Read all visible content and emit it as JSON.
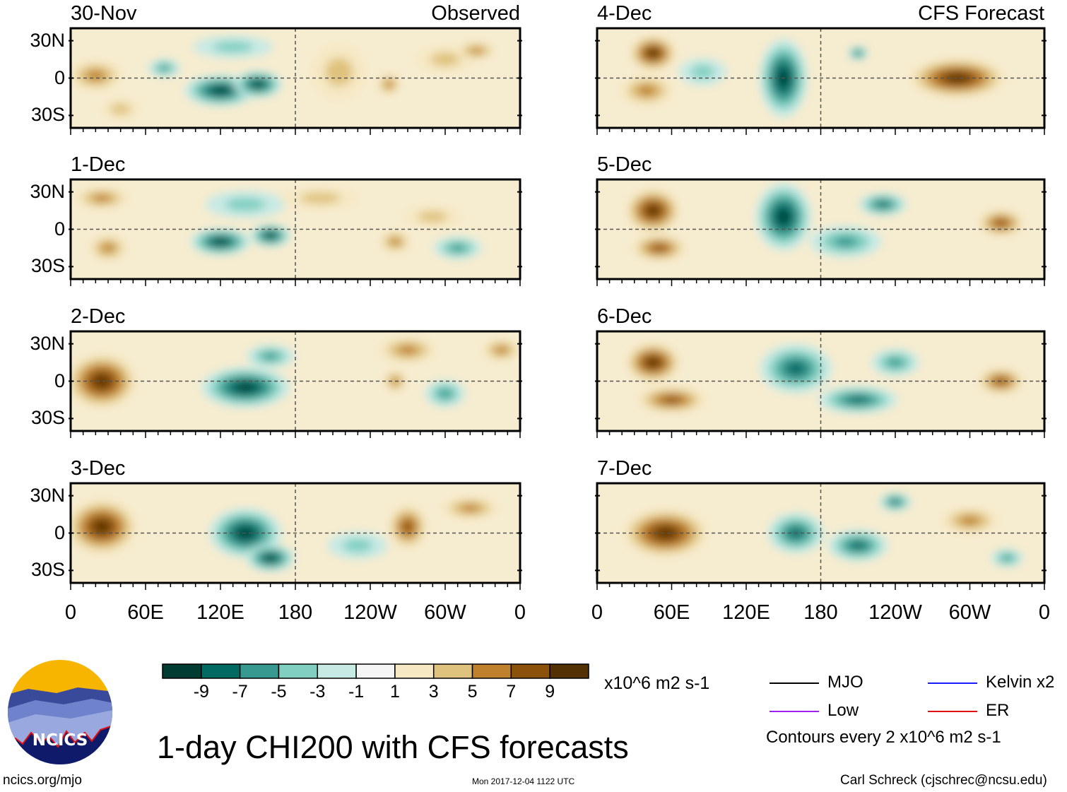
{
  "chart_data": {
    "type": "heatmap",
    "title": "1-day CHI200 with CFS forecasts",
    "units": "x10^6 m2 s-1",
    "x_ticks": [
      "0",
      "60E",
      "120E",
      "180",
      "120W",
      "60W",
      "0"
    ],
    "y_ticks": [
      "30N",
      "0",
      "30S"
    ],
    "lon_range": [
      0,
      360
    ],
    "lat_range": [
      -40,
      40
    ],
    "colorbar": {
      "labels": [
        "-9",
        "-7",
        "-5",
        "-3",
        "-1",
        "1",
        "3",
        "5",
        "7",
        "9"
      ],
      "colors": [
        "#013c33",
        "#016a63",
        "#379990",
        "#80cfc1",
        "#c7eae5",
        "#f5f5f5",
        "#f6e8c3",
        "#dfc27d",
        "#bf812d",
        "#8c510a",
        "#543005"
      ]
    },
    "legend": [
      {
        "label": "MJO",
        "color": "#000000"
      },
      {
        "label": "Kelvin x2",
        "color": "#1a1aff"
      },
      {
        "label": "Low",
        "color": "#a020f0"
      },
      {
        "label": "ER",
        "color": "#e01010"
      }
    ],
    "contour_note": "Contours every 2 x10^6 m2 s-1",
    "panels": [
      {
        "date": "30-Nov",
        "tag": "Observed",
        "column": "left",
        "features": [
          {
            "lon": 20,
            "lat": 2,
            "value": 6,
            "sx": 14,
            "sy": 14
          },
          {
            "lon": 40,
            "lat": -25,
            "value": 4,
            "sx": 10,
            "sy": 10
          },
          {
            "lon": 75,
            "lat": 8,
            "value": -6,
            "sx": 8,
            "sy": 8
          },
          {
            "lon": 120,
            "lat": -10,
            "value": -10,
            "sx": 18,
            "sy": 14
          },
          {
            "lon": 150,
            "lat": -5,
            "value": -9,
            "sx": 12,
            "sy": 12
          },
          {
            "lon": 130,
            "lat": 25,
            "value": -4,
            "sx": 20,
            "sy": 10
          },
          {
            "lon": 215,
            "lat": 5,
            "value": 4,
            "sx": 14,
            "sy": 25
          },
          {
            "lon": 255,
            "lat": -5,
            "value": 6,
            "sx": 6,
            "sy": 10
          },
          {
            "lon": 300,
            "lat": 15,
            "value": 4,
            "sx": 15,
            "sy": 12
          },
          {
            "lon": 325,
            "lat": 22,
            "value": 5,
            "sx": 10,
            "sy": 8
          }
        ]
      },
      {
        "date": "1-Dec",
        "tag": "",
        "column": "left",
        "features": [
          {
            "lon": 25,
            "lat": 25,
            "value": 5,
            "sx": 14,
            "sy": 10
          },
          {
            "lon": 30,
            "lat": -15,
            "value": 5,
            "sx": 10,
            "sy": 12
          },
          {
            "lon": 120,
            "lat": -10,
            "value": -10,
            "sx": 15,
            "sy": 12
          },
          {
            "lon": 160,
            "lat": -5,
            "value": -9,
            "sx": 10,
            "sy": 10
          },
          {
            "lon": 140,
            "lat": 20,
            "value": -4,
            "sx": 20,
            "sy": 12
          },
          {
            "lon": 200,
            "lat": 25,
            "value": 4,
            "sx": 20,
            "sy": 10
          },
          {
            "lon": 260,
            "lat": -10,
            "value": 5,
            "sx": 8,
            "sy": 10
          },
          {
            "lon": 310,
            "lat": -15,
            "value": -6,
            "sx": 12,
            "sy": 10
          },
          {
            "lon": 290,
            "lat": 10,
            "value": 4,
            "sx": 15,
            "sy": 10
          }
        ]
      },
      {
        "date": "2-Dec",
        "tag": "",
        "column": "left",
        "features": [
          {
            "lon": 25,
            "lat": 0,
            "value": 11,
            "sx": 18,
            "sy": 25
          },
          {
            "lon": 140,
            "lat": -5,
            "value": -10,
            "sx": 22,
            "sy": 18
          },
          {
            "lon": 160,
            "lat": 20,
            "value": -6,
            "sx": 12,
            "sy": 10
          },
          {
            "lon": 270,
            "lat": 25,
            "value": 6,
            "sx": 15,
            "sy": 12
          },
          {
            "lon": 260,
            "lat": 0,
            "value": 5,
            "sx": 6,
            "sy": 10
          },
          {
            "lon": 300,
            "lat": -10,
            "value": -5,
            "sx": 10,
            "sy": 12
          },
          {
            "lon": 345,
            "lat": 25,
            "value": 5,
            "sx": 10,
            "sy": 10
          }
        ]
      },
      {
        "date": "3-Dec",
        "tag": "",
        "column": "left",
        "features": [
          {
            "lon": 25,
            "lat": 5,
            "value": 11,
            "sx": 18,
            "sy": 25
          },
          {
            "lon": 140,
            "lat": 0,
            "value": -10,
            "sx": 18,
            "sy": 22
          },
          {
            "lon": 160,
            "lat": -20,
            "value": -9,
            "sx": 12,
            "sy": 12
          },
          {
            "lon": 270,
            "lat": 5,
            "value": 8,
            "sx": 10,
            "sy": 20
          },
          {
            "lon": 320,
            "lat": 20,
            "value": 5,
            "sx": 15,
            "sy": 10
          },
          {
            "lon": 230,
            "lat": -10,
            "value": -4,
            "sx": 15,
            "sy": 12
          }
        ]
      },
      {
        "date": "4-Dec",
        "tag": "CFS Forecast",
        "column": "right",
        "features": [
          {
            "lon": 45,
            "lat": 20,
            "value": 11,
            "sx": 12,
            "sy": 16
          },
          {
            "lon": 40,
            "lat": -10,
            "value": 6,
            "sx": 14,
            "sy": 14
          },
          {
            "lon": 150,
            "lat": 0,
            "value": -11,
            "sx": 12,
            "sy": 35
          },
          {
            "lon": 210,
            "lat": 20,
            "value": -8,
            "sx": 5,
            "sy": 6
          },
          {
            "lon": 290,
            "lat": 0,
            "value": 9,
            "sx": 25,
            "sy": 18
          },
          {
            "lon": 85,
            "lat": 5,
            "value": -4,
            "sx": 12,
            "sy": 12
          }
        ]
      },
      {
        "date": "5-Dec",
        "tag": "",
        "column": "right",
        "features": [
          {
            "lon": 45,
            "lat": 15,
            "value": 11,
            "sx": 14,
            "sy": 20
          },
          {
            "lon": 50,
            "lat": -15,
            "value": 7,
            "sx": 14,
            "sy": 12
          },
          {
            "lon": 150,
            "lat": 10,
            "value": -10,
            "sx": 14,
            "sy": 30
          },
          {
            "lon": 200,
            "lat": -10,
            "value": -6,
            "sx": 18,
            "sy": 14
          },
          {
            "lon": 230,
            "lat": 20,
            "value": -7,
            "sx": 12,
            "sy": 10
          },
          {
            "lon": 325,
            "lat": 5,
            "value": 7,
            "sx": 12,
            "sy": 12
          }
        ]
      },
      {
        "date": "6-Dec",
        "tag": "",
        "column": "right",
        "features": [
          {
            "lon": 45,
            "lat": 15,
            "value": 11,
            "sx": 14,
            "sy": 18
          },
          {
            "lon": 60,
            "lat": -15,
            "value": 7,
            "sx": 18,
            "sy": 12
          },
          {
            "lon": 160,
            "lat": 10,
            "value": -8,
            "sx": 18,
            "sy": 22
          },
          {
            "lon": 210,
            "lat": -15,
            "value": -8,
            "sx": 20,
            "sy": 12
          },
          {
            "lon": 240,
            "lat": 15,
            "value": -6,
            "sx": 12,
            "sy": 12
          },
          {
            "lon": 325,
            "lat": 0,
            "value": 8,
            "sx": 12,
            "sy": 12
          }
        ]
      },
      {
        "date": "7-Dec",
        "tag": "",
        "column": "right",
        "features": [
          {
            "lon": 55,
            "lat": 0,
            "value": 11,
            "sx": 22,
            "sy": 22
          },
          {
            "lon": 160,
            "lat": 0,
            "value": -8,
            "sx": 14,
            "sy": 18
          },
          {
            "lon": 210,
            "lat": -10,
            "value": -8,
            "sx": 15,
            "sy": 14
          },
          {
            "lon": 240,
            "lat": 25,
            "value": -7,
            "sx": 8,
            "sy": 8
          },
          {
            "lon": 300,
            "lat": 10,
            "value": 5,
            "sx": 15,
            "sy": 12
          },
          {
            "lon": 330,
            "lat": -20,
            "value": -6,
            "sx": 8,
            "sy": 8
          }
        ]
      }
    ]
  },
  "footer": {
    "title": "1-day CHI200 with CFS forecasts",
    "url": "ncics.org/mjo",
    "timestamp": "Mon 2017-12-04 1122 UTC",
    "author": "Carl Schreck (cjschrec@ncsu.edu)",
    "logo_text": "NCICS"
  }
}
